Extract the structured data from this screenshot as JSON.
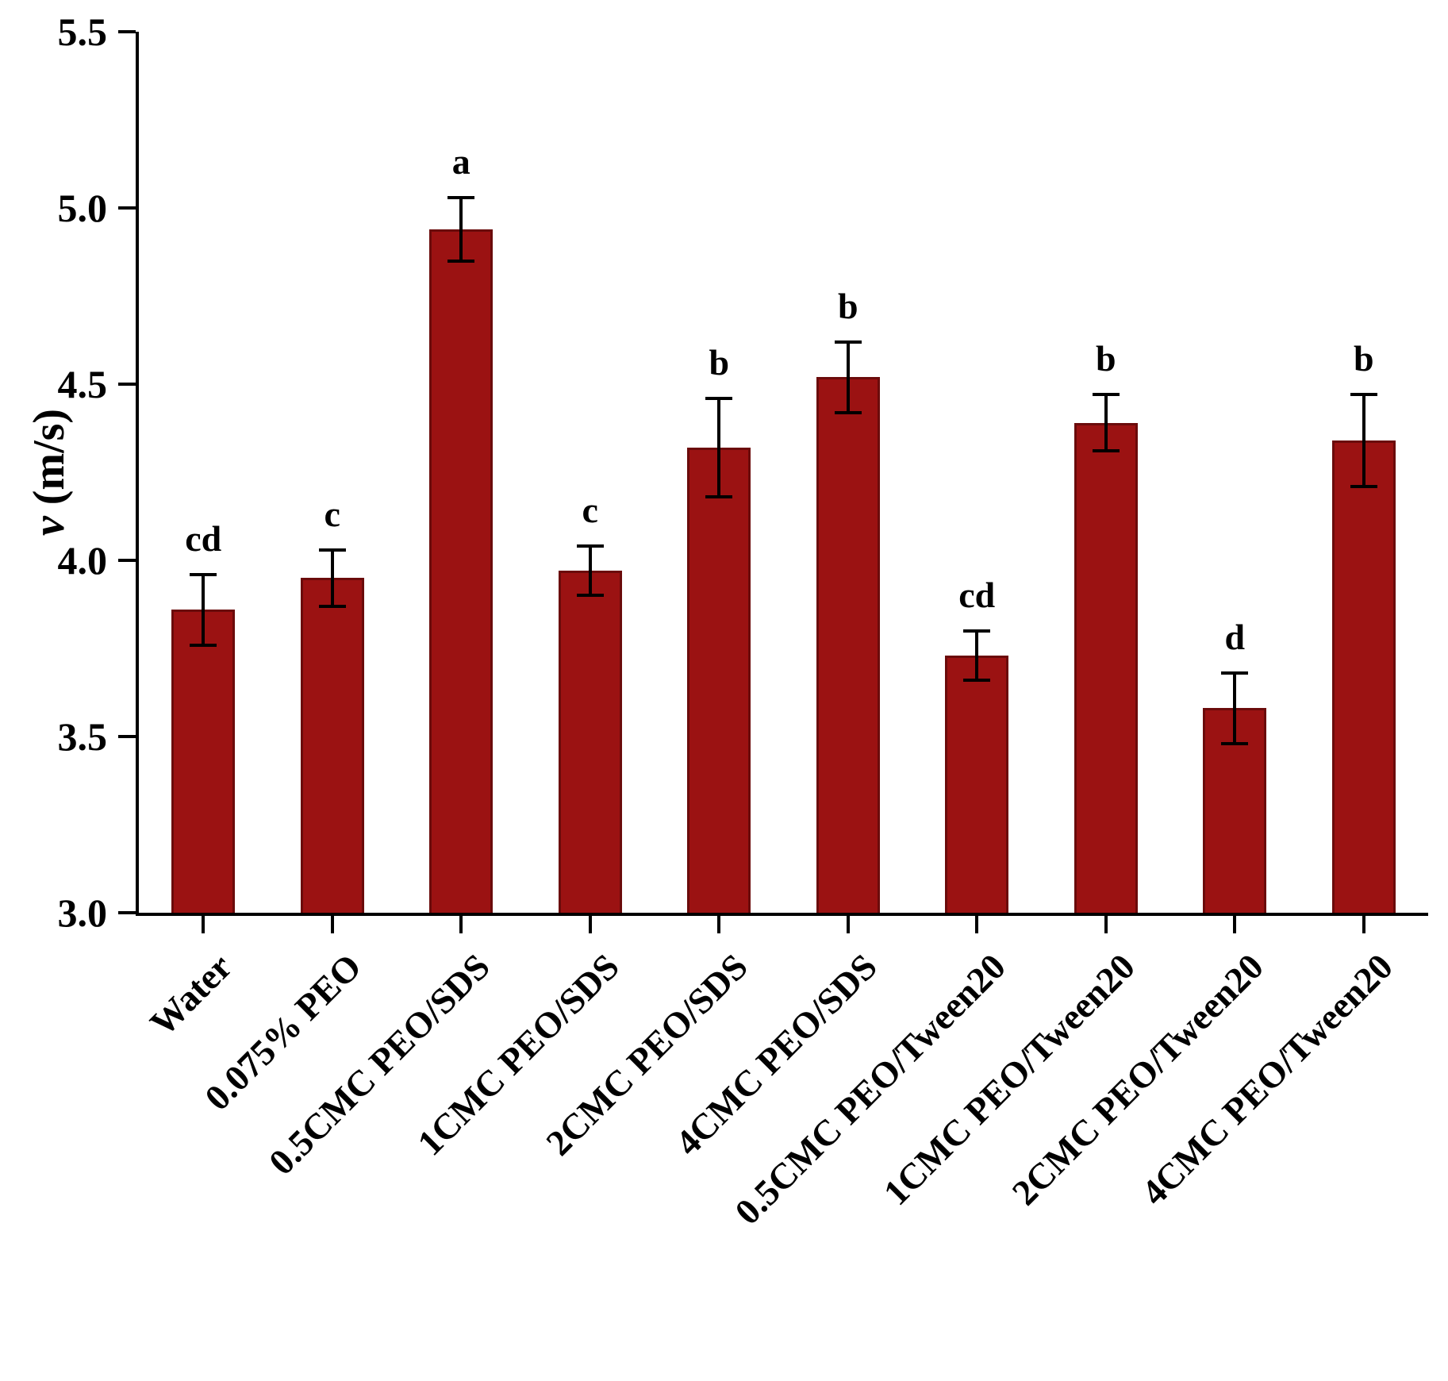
{
  "chart_data": {
    "type": "bar",
    "title": "",
    "xlabel": "",
    "ylabel": "v (m/s)",
    "ylabel_symbol": "v",
    "ylabel_units": " (m/s)",
    "ylim": [
      3.0,
      5.5
    ],
    "yticks": [
      3.0,
      3.5,
      4.0,
      4.5,
      5.0,
      5.5
    ],
    "ytick_labels": [
      "3.0",
      "3.5",
      "4.0",
      "4.5",
      "5.0",
      "5.5"
    ],
    "grid": false,
    "legend": null,
    "bar_color": "#9B1212",
    "bar_border": "#6B0B0B",
    "error_color": "#000000",
    "categories": [
      "Water",
      "0.075% PEO",
      "0.5CMC PEO/SDS",
      "1CMC PEO/SDS",
      "2CMC PEO/SDS",
      "4CMC PEO/SDS",
      "0.5CMC PEO/Tween20",
      "1CMC PEO/Tween20",
      "2CMC PEO/Tween20",
      "4CMC PEO/Tween20"
    ],
    "values": [
      3.86,
      3.95,
      4.94,
      3.97,
      4.32,
      4.52,
      3.73,
      4.39,
      3.58,
      4.34
    ],
    "errors": [
      0.1,
      0.08,
      0.09,
      0.07,
      0.14,
      0.1,
      0.07,
      0.08,
      0.1,
      0.13
    ],
    "sig_letters": [
      "cd",
      "c",
      "a",
      "c",
      "b",
      "b",
      "cd",
      "b",
      "d",
      "b"
    ]
  }
}
